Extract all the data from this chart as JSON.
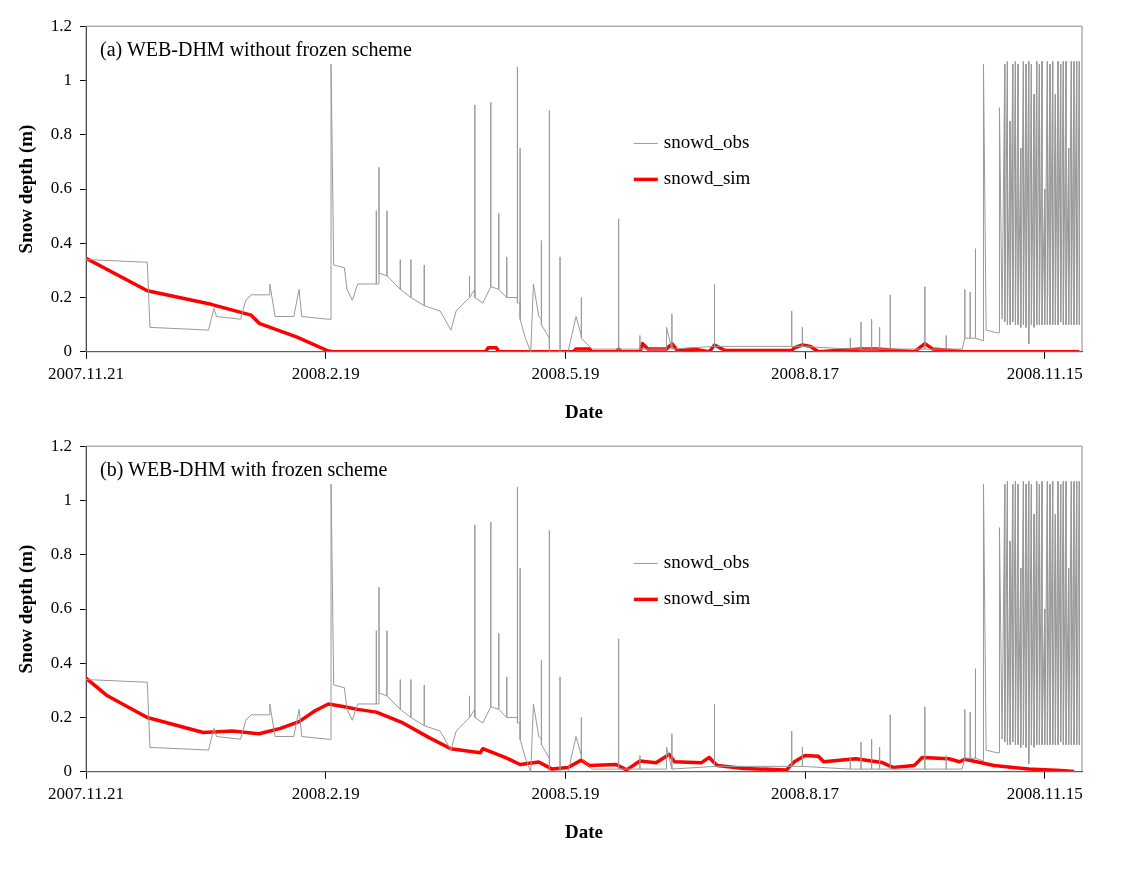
{
  "chart_data": [
    {
      "type": "line",
      "title": "(a) WEB-DHM without frozen scheme",
      "xlabel": "Date",
      "ylabel": "Snow depth (m)",
      "xlim": [
        "2007-11-21",
        "2008-11-29"
      ],
      "ylim": [
        0,
        1.2
      ],
      "yticks": [
        0,
        0.2,
        0.4,
        0.6,
        0.8,
        1,
        1.2
      ],
      "xticks": [
        {
          "value": "2007-11-21",
          "label": "2007.11.21"
        },
        {
          "value": "2008-02-19",
          "label": "2008.2.19"
        },
        {
          "value": "2008-05-19",
          "label": "2008.5.19"
        },
        {
          "value": "2008-08-17",
          "label": "2008.8.17"
        },
        {
          "value": "2008-11-15",
          "label": "2008.11.15"
        }
      ],
      "grid": false,
      "legend": "center",
      "marker": "none",
      "line_style": "solid",
      "series": [
        {
          "name": "snowd_obs",
          "color": "#999999",
          "x": [
            "2007-11-21",
            "2007-12-14",
            "2007-12-15",
            "2008-01-06",
            "2008-01-07",
            "2008-01-08",
            "2008-01-09",
            "2008-01-18",
            "2008-01-20",
            "2008-01-22",
            "2008-01-29",
            "2008-01-29",
            "2008-01-31",
            "2008-02-07",
            "2008-02-09",
            "2008-02-10",
            "2008-02-20",
            "2008-02-21",
            "2008-02-21",
            "2008-02-22",
            "2008-02-26",
            "2008-02-27",
            "2008-02-29",
            "2008-03-02",
            "2008-03-07",
            "2008-03-09",
            "2008-03-09",
            "2008-03-09",
            "2008-03-10",
            "2008-03-10",
            "2008-03-10",
            "2008-03-13",
            "2008-03-13",
            "2008-03-13",
            "2008-03-18",
            "2008-03-18",
            "2008-03-18",
            "2008-03-22",
            "2008-03-22",
            "2008-03-22",
            "2008-03-27",
            "2008-03-27",
            "2008-03-27",
            "2008-04-02",
            "2008-04-06",
            "2008-04-08",
            "2008-04-13",
            "2008-04-13",
            "2008-04-13",
            "2008-04-15",
            "2008-04-15",
            "2008-04-15",
            "2008-04-18",
            "2008-04-21",
            "2008-04-21",
            "2008-04-21",
            "2008-04-24",
            "2008-04-24",
            "2008-04-24",
            "2008-04-27",
            "2008-04-27",
            "2008-04-27",
            "2008-04-29",
            "2008-05-01",
            "2008-05-01",
            "2008-05-01",
            "2008-05-02",
            "2008-05-02",
            "2008-05-02",
            "2008-05-04",
            "2008-05-06",
            "2008-05-07",
            "2008-05-09",
            "2008-05-10",
            "2008-05-10",
            "2008-05-10",
            "2008-05-13",
            "2008-05-13",
            "2008-05-13",
            "2008-05-15",
            "2008-05-17",
            "2008-05-17",
            "2008-05-17",
            "2008-05-20",
            "2008-05-23",
            "2008-05-25",
            "2008-05-25",
            "2008-05-25",
            "2008-05-29",
            "2008-06-08",
            "2008-06-08",
            "2008-06-08",
            "2008-06-16",
            "2008-06-16",
            "2008-06-16",
            "2008-06-26",
            "2008-06-26",
            "2008-06-28",
            "2008-06-28",
            "2008-06-28",
            "2008-07-14",
            "2008-07-14",
            "2008-07-14",
            "2008-07-18",
            "2008-08-12",
            "2008-08-12",
            "2008-08-12",
            "2008-08-16",
            "2008-08-16",
            "2008-08-16",
            "2008-09-03",
            "2008-09-03",
            "2008-09-03",
            "2008-09-07",
            "2008-09-07",
            "2008-09-07",
            "2008-09-11",
            "2008-09-11",
            "2008-09-11",
            "2008-09-14",
            "2008-09-14",
            "2008-09-14",
            "2008-09-18",
            "2008-09-18",
            "2008-09-18",
            "2008-10-01",
            "2008-10-01",
            "2008-10-01",
            "2008-10-09",
            "2008-10-09",
            "2008-10-09",
            "2008-10-15",
            "2008-10-16",
            "2008-10-16",
            "2008-10-16",
            "2008-10-18",
            "2008-10-18",
            "2008-10-18",
            "2008-10-20",
            "2008-10-20",
            "2008-10-20",
            "2008-10-23",
            "2008-10-23",
            "2008-10-24",
            "2008-10-28",
            "2008-10-29",
            "2008-10-29",
            "2008-10-30",
            "2008-10-31",
            "2008-10-31",
            "2008-11-01",
            "2008-11-01",
            "2008-11-02",
            "2008-11-02",
            "2008-11-03",
            "2008-11-03",
            "2008-11-04",
            "2008-11-04",
            "2008-11-05",
            "2008-11-05",
            "2008-11-06",
            "2008-11-06",
            "2008-11-07",
            "2008-11-07",
            "2008-11-08",
            "2008-11-08",
            "2008-11-09",
            "2008-11-09",
            "2008-11-10",
            "2008-11-10",
            "2008-11-11",
            "2008-11-11",
            "2008-11-12",
            "2008-11-12",
            "2008-11-13",
            "2008-11-13",
            "2008-11-14",
            "2008-11-14",
            "2008-11-15",
            "2008-11-15",
            "2008-11-16",
            "2008-11-16",
            "2008-11-17",
            "2008-11-17",
            "2008-11-18",
            "2008-11-18",
            "2008-11-19",
            "2008-11-19",
            "2008-11-20",
            "2008-11-20",
            "2008-11-21",
            "2008-11-21",
            "2008-11-22",
            "2008-11-22",
            "2008-11-23",
            "2008-11-23",
            "2008-11-24",
            "2008-11-24",
            "2008-11-25",
            "2008-11-25",
            "2008-11-26",
            "2008-11-26",
            "2008-11-27",
            "2008-11-27",
            "2008-11-28",
            "2008-11-28"
          ],
          "values": [
            0.34,
            0.33,
            0.09,
            0.08,
            0.12,
            0.16,
            0.13,
            0.12,
            0.19,
            0.21,
            0.21,
            0.25,
            0.13,
            0.13,
            0.23,
            0.13,
            0.12,
            0.12,
            1.06,
            0.32,
            0.31,
            0.23,
            0.19,
            0.25,
            0.25,
            0.25,
            0.52,
            0.25,
            0.25,
            0.68,
            0.29,
            0.28,
            0.52,
            0.28,
            0.23,
            0.34,
            0.23,
            0.2,
            0.34,
            0.2,
            0.17,
            0.32,
            0.17,
            0.15,
            0.08,
            0.15,
            0.2,
            0.28,
            0.2,
            0.23,
            0.91,
            0.2,
            0.18,
            0.24,
            0.92,
            0.24,
            0.23,
            0.51,
            0.23,
            0.2,
            0.35,
            0.2,
            0.2,
            0.2,
            1.05,
            0.18,
            0.18,
            0.75,
            0.12,
            0.05,
            0,
            0.25,
            0.13,
            0.12,
            0.41,
            0.1,
            0.05,
            0.89,
            0,
            0,
            0,
            0.35,
            0,
            0,
            0.13,
            0.06,
            0.2,
            0.05,
            0.01,
            0.01,
            0.49,
            0.01,
            0.01,
            0.06,
            0.01,
            0.01,
            0.09,
            0.01,
            0.14,
            0.01,
            0.02,
            0.25,
            0.02,
            0.02,
            0.02,
            0.15,
            0.02,
            0.02,
            0.09,
            0.02,
            0.01,
            0.05,
            0.01,
            0.01,
            0.11,
            0.01,
            0.01,
            0.12,
            0.01,
            0.01,
            0.09,
            0.01,
            0.01,
            0.21,
            0.01,
            0.01,
            0.24,
            0.01,
            0.01,
            0.06,
            0.01,
            0.01,
            0.05,
            0.23,
            0.05,
            0.05,
            0.22,
            0.05,
            0.05,
            0.38,
            0.05,
            0.04,
            1.06,
            0.08,
            0.07,
            0.07,
            0.9,
            0.12,
            1.06,
            0.11,
            1.07,
            0.1,
            0.85,
            0.1,
            1.06,
            0.11,
            1.07,
            0.1,
            1.06,
            0.1,
            0.75,
            0.09,
            1.07,
            0.1,
            1.06,
            0.09,
            1.07,
            0.03,
            1.06,
            0.1,
            0.95,
            0.09,
            1.07,
            0.1,
            1.06,
            0.1,
            1.07,
            0.1,
            0.6,
            0.1,
            1.07,
            0.1,
            1.06,
            0.1,
            1.07,
            0.1,
            0.95,
            0.1,
            1.07,
            0.1,
            1.06,
            0.11,
            1.07,
            0.1,
            1.07,
            0.1,
            0.75,
            0.1,
            1.07,
            0.1,
            1.07,
            0.1,
            1.07,
            0.1,
            1.07,
            0.1
          ]
        },
        {
          "name": "snowd_sim",
          "color": "#ff0000",
          "x": [
            "2007-11-21",
            "2007-12-14",
            "2008-01-07",
            "2008-01-22",
            "2008-01-25",
            "2008-02-08",
            "2008-02-20",
            "2008-02-22",
            "2008-04-19",
            "2008-04-20",
            "2008-04-23",
            "2008-04-24",
            "2008-05-22",
            "2008-05-23",
            "2008-05-28",
            "2008-05-29",
            "2008-06-07",
            "2008-06-08",
            "2008-06-09",
            "2008-06-16",
            "2008-06-17",
            "2008-06-19",
            "2008-06-26",
            "2008-06-28",
            "2008-06-30",
            "2008-07-06",
            "2008-07-12",
            "2008-07-14",
            "2008-07-18",
            "2008-08-12",
            "2008-08-13",
            "2008-08-16",
            "2008-08-19",
            "2008-08-22",
            "2008-09-07",
            "2008-09-13",
            "2008-09-27",
            "2008-10-01",
            "2008-10-04",
            "2008-10-16",
            "2008-11-28"
          ],
          "values": [
            0.345,
            0.225,
            0.175,
            0.135,
            0.105,
            0.055,
            0.003,
            0,
            0,
            0.015,
            0.015,
            0,
            0,
            0.01,
            0.01,
            0,
            0,
            0.01,
            0,
            0,
            0.03,
            0.01,
            0.01,
            0.03,
            0.005,
            0.01,
            0,
            0.025,
            0.005,
            0.005,
            0.015,
            0.025,
            0.02,
            0,
            0.01,
            0.01,
            0,
            0.03,
            0.01,
            0,
            0
          ]
        }
      ]
    },
    {
      "type": "line",
      "title": "(b) WEB-DHM with frozen scheme",
      "xlabel": "Date",
      "ylabel": "Snow depth (m)",
      "xlim": [
        "2007-11-21",
        "2008-11-29"
      ],
      "ylim": [
        0,
        1.2
      ],
      "yticks": [
        0,
        0.2,
        0.4,
        0.6,
        0.8,
        1,
        1.2
      ],
      "xticks": [
        {
          "value": "2007-11-21",
          "label": "2007.11.21"
        },
        {
          "value": "2008-02-19",
          "label": "2008.2.19"
        },
        {
          "value": "2008-05-19",
          "label": "2008.5.19"
        },
        {
          "value": "2008-08-17",
          "label": "2008.8.17"
        },
        {
          "value": "2008-11-15",
          "label": "2008.11.15"
        }
      ],
      "grid": false,
      "legend": "center",
      "marker": "none",
      "line_style": "solid",
      "series": [
        {
          "name": "snowd_obs",
          "color": "#999999",
          "x": [
            "2007-11-21",
            "2007-12-14",
            "2007-12-15",
            "2008-01-06",
            "2008-01-07",
            "2008-01-08",
            "2008-01-09",
            "2008-01-18",
            "2008-01-20",
            "2008-01-22",
            "2008-01-29",
            "2008-01-29",
            "2008-01-31",
            "2008-02-07",
            "2008-02-09",
            "2008-02-10",
            "2008-02-20",
            "2008-02-21",
            "2008-02-21",
            "2008-02-22",
            "2008-02-26",
            "2008-02-27",
            "2008-02-29",
            "2008-03-02",
            "2008-03-07",
            "2008-03-09",
            "2008-03-09",
            "2008-03-09",
            "2008-03-10",
            "2008-03-10",
            "2008-03-10",
            "2008-03-13",
            "2008-03-13",
            "2008-03-13",
            "2008-03-18",
            "2008-03-18",
            "2008-03-18",
            "2008-03-22",
            "2008-03-22",
            "2008-03-22",
            "2008-03-27",
            "2008-03-27",
            "2008-03-27",
            "2008-04-02",
            "2008-04-06",
            "2008-04-08",
            "2008-04-13",
            "2008-04-13",
            "2008-04-13",
            "2008-04-15",
            "2008-04-15",
            "2008-04-15",
            "2008-04-18",
            "2008-04-21",
            "2008-04-21",
            "2008-04-21",
            "2008-04-24",
            "2008-04-24",
            "2008-04-24",
            "2008-04-27",
            "2008-04-27",
            "2008-04-27",
            "2008-04-29",
            "2008-05-01",
            "2008-05-01",
            "2008-05-01",
            "2008-05-02",
            "2008-05-02",
            "2008-05-02",
            "2008-05-04",
            "2008-05-06",
            "2008-05-07",
            "2008-05-09",
            "2008-05-10",
            "2008-05-10",
            "2008-05-10",
            "2008-05-13",
            "2008-05-13",
            "2008-05-13",
            "2008-05-15",
            "2008-05-17",
            "2008-05-17",
            "2008-05-17",
            "2008-05-20",
            "2008-05-23",
            "2008-05-25",
            "2008-05-25",
            "2008-05-25",
            "2008-05-29",
            "2008-06-08",
            "2008-06-08",
            "2008-06-08",
            "2008-06-16",
            "2008-06-16",
            "2008-06-16",
            "2008-06-26",
            "2008-06-26",
            "2008-06-28",
            "2008-06-28",
            "2008-06-28",
            "2008-07-14",
            "2008-07-14",
            "2008-07-14",
            "2008-07-18",
            "2008-08-12",
            "2008-08-12",
            "2008-08-12",
            "2008-08-16",
            "2008-08-16",
            "2008-08-16",
            "2008-09-03",
            "2008-09-03",
            "2008-09-03",
            "2008-09-07",
            "2008-09-07",
            "2008-09-07",
            "2008-09-11",
            "2008-09-11",
            "2008-09-11",
            "2008-09-14",
            "2008-09-14",
            "2008-09-14",
            "2008-09-18",
            "2008-09-18",
            "2008-09-18",
            "2008-10-01",
            "2008-10-01",
            "2008-10-01",
            "2008-10-09",
            "2008-10-09",
            "2008-10-09",
            "2008-10-15",
            "2008-10-16",
            "2008-10-16",
            "2008-10-16",
            "2008-10-18",
            "2008-10-18",
            "2008-10-18",
            "2008-10-20",
            "2008-10-20",
            "2008-10-20",
            "2008-10-23",
            "2008-10-23",
            "2008-10-24",
            "2008-10-28",
            "2008-10-29",
            "2008-10-29",
            "2008-10-30",
            "2008-10-31",
            "2008-10-31",
            "2008-11-01",
            "2008-11-01",
            "2008-11-02",
            "2008-11-02",
            "2008-11-03",
            "2008-11-03",
            "2008-11-04",
            "2008-11-04",
            "2008-11-05",
            "2008-11-05",
            "2008-11-06",
            "2008-11-06",
            "2008-11-07",
            "2008-11-07",
            "2008-11-08",
            "2008-11-08",
            "2008-11-09",
            "2008-11-09",
            "2008-11-10",
            "2008-11-10",
            "2008-11-11",
            "2008-11-11",
            "2008-11-12",
            "2008-11-12",
            "2008-11-13",
            "2008-11-13",
            "2008-11-14",
            "2008-11-14",
            "2008-11-15",
            "2008-11-15",
            "2008-11-16",
            "2008-11-16",
            "2008-11-17",
            "2008-11-17",
            "2008-11-18",
            "2008-11-18",
            "2008-11-19",
            "2008-11-19",
            "2008-11-20",
            "2008-11-20",
            "2008-11-21",
            "2008-11-21",
            "2008-11-22",
            "2008-11-22",
            "2008-11-23",
            "2008-11-23",
            "2008-11-24",
            "2008-11-24",
            "2008-11-25",
            "2008-11-25",
            "2008-11-26",
            "2008-11-26",
            "2008-11-27",
            "2008-11-27",
            "2008-11-28",
            "2008-11-28"
          ],
          "values": [
            0.34,
            0.33,
            0.09,
            0.08,
            0.12,
            0.16,
            0.13,
            0.12,
            0.19,
            0.21,
            0.21,
            0.25,
            0.13,
            0.13,
            0.23,
            0.13,
            0.12,
            0.12,
            1.06,
            0.32,
            0.31,
            0.23,
            0.19,
            0.25,
            0.25,
            0.25,
            0.52,
            0.25,
            0.25,
            0.68,
            0.29,
            0.28,
            0.52,
            0.28,
            0.23,
            0.34,
            0.23,
            0.2,
            0.34,
            0.2,
            0.17,
            0.32,
            0.17,
            0.15,
            0.08,
            0.15,
            0.2,
            0.28,
            0.2,
            0.23,
            0.91,
            0.2,
            0.18,
            0.24,
            0.92,
            0.24,
            0.23,
            0.51,
            0.23,
            0.2,
            0.35,
            0.2,
            0.2,
            0.2,
            1.05,
            0.18,
            0.18,
            0.75,
            0.12,
            0.05,
            0,
            0.25,
            0.13,
            0.12,
            0.41,
            0.1,
            0.05,
            0.89,
            0,
            0,
            0,
            0.35,
            0,
            0,
            0.13,
            0.06,
            0.2,
            0.05,
            0.01,
            0.01,
            0.49,
            0.01,
            0.01,
            0.06,
            0.01,
            0.01,
            0.09,
            0.01,
            0.14,
            0.01,
            0.02,
            0.25,
            0.02,
            0.02,
            0.02,
            0.15,
            0.02,
            0.02,
            0.09,
            0.02,
            0.01,
            0.05,
            0.01,
            0.01,
            0.11,
            0.01,
            0.01,
            0.12,
            0.01,
            0.01,
            0.09,
            0.01,
            0.01,
            0.21,
            0.01,
            0.01,
            0.24,
            0.01,
            0.01,
            0.06,
            0.01,
            0.01,
            0.05,
            0.23,
            0.05,
            0.05,
            0.22,
            0.05,
            0.05,
            0.38,
            0.05,
            0.04,
            1.06,
            0.08,
            0.07,
            0.07,
            0.9,
            0.12,
            1.06,
            0.11,
            1.07,
            0.1,
            0.85,
            0.1,
            1.06,
            0.11,
            1.07,
            0.1,
            1.06,
            0.1,
            0.75,
            0.09,
            1.07,
            0.1,
            1.06,
            0.09,
            1.07,
            0.03,
            1.06,
            0.1,
            0.95,
            0.09,
            1.07,
            0.1,
            1.06,
            0.1,
            1.07,
            0.1,
            0.6,
            0.1,
            1.07,
            0.1,
            1.06,
            0.1,
            1.07,
            0.1,
            0.95,
            0.1,
            1.07,
            0.1,
            1.06,
            0.11,
            1.07,
            0.1,
            1.07,
            0.1,
            0.75,
            0.1,
            1.07,
            0.1,
            1.07,
            0.1,
            1.07,
            0.1,
            1.07,
            0.1
          ]
        },
        {
          "name": "snowd_sim",
          "color": "#ff0000",
          "x": [
            "2007-11-21",
            "2007-11-29",
            "2007-12-14",
            "2008-01-04",
            "2008-01-15",
            "2008-01-25",
            "2008-02-02",
            "2008-02-09",
            "2008-02-15",
            "2008-02-20",
            "2008-02-26",
            "2008-03-02",
            "2008-03-09",
            "2008-03-19",
            "2008-03-29",
            "2008-04-06",
            "2008-04-17",
            "2008-04-18",
            "2008-04-27",
            "2008-05-02",
            "2008-05-09",
            "2008-05-14",
            "2008-05-20",
            "2008-05-25",
            "2008-05-28",
            "2008-06-07",
            "2008-06-11",
            "2008-06-16",
            "2008-06-22",
            "2008-06-27",
            "2008-06-29",
            "2008-07-09",
            "2008-07-12",
            "2008-07-15",
            "2008-07-25",
            "2008-08-10",
            "2008-08-13",
            "2008-08-17",
            "2008-08-22",
            "2008-08-24",
            "2008-09-05",
            "2008-09-15",
            "2008-09-19",
            "2008-09-27",
            "2008-09-30",
            "2008-10-10",
            "2008-10-14",
            "2008-10-16",
            "2008-10-27",
            "2008-11-09",
            "2008-11-21",
            "2008-11-26"
          ],
          "values": [
            0.345,
            0.28,
            0.2,
            0.145,
            0.15,
            0.14,
            0.16,
            0.185,
            0.225,
            0.25,
            0.24,
            0.23,
            0.22,
            0.18,
            0.125,
            0.085,
            0.07,
            0.085,
            0.05,
            0.027,
            0.036,
            0.01,
            0.016,
            0.043,
            0.023,
            0.027,
            0.007,
            0.04,
            0.033,
            0.064,
            0.037,
            0.033,
            0.053,
            0.023,
            0.012,
            0.007,
            0.037,
            0.06,
            0.057,
            0.037,
            0.048,
            0.034,
            0.016,
            0.023,
            0.053,
            0.048,
            0.037,
            0.046,
            0.023,
            0.01,
            0.005,
            0.001
          ]
        }
      ]
    }
  ]
}
